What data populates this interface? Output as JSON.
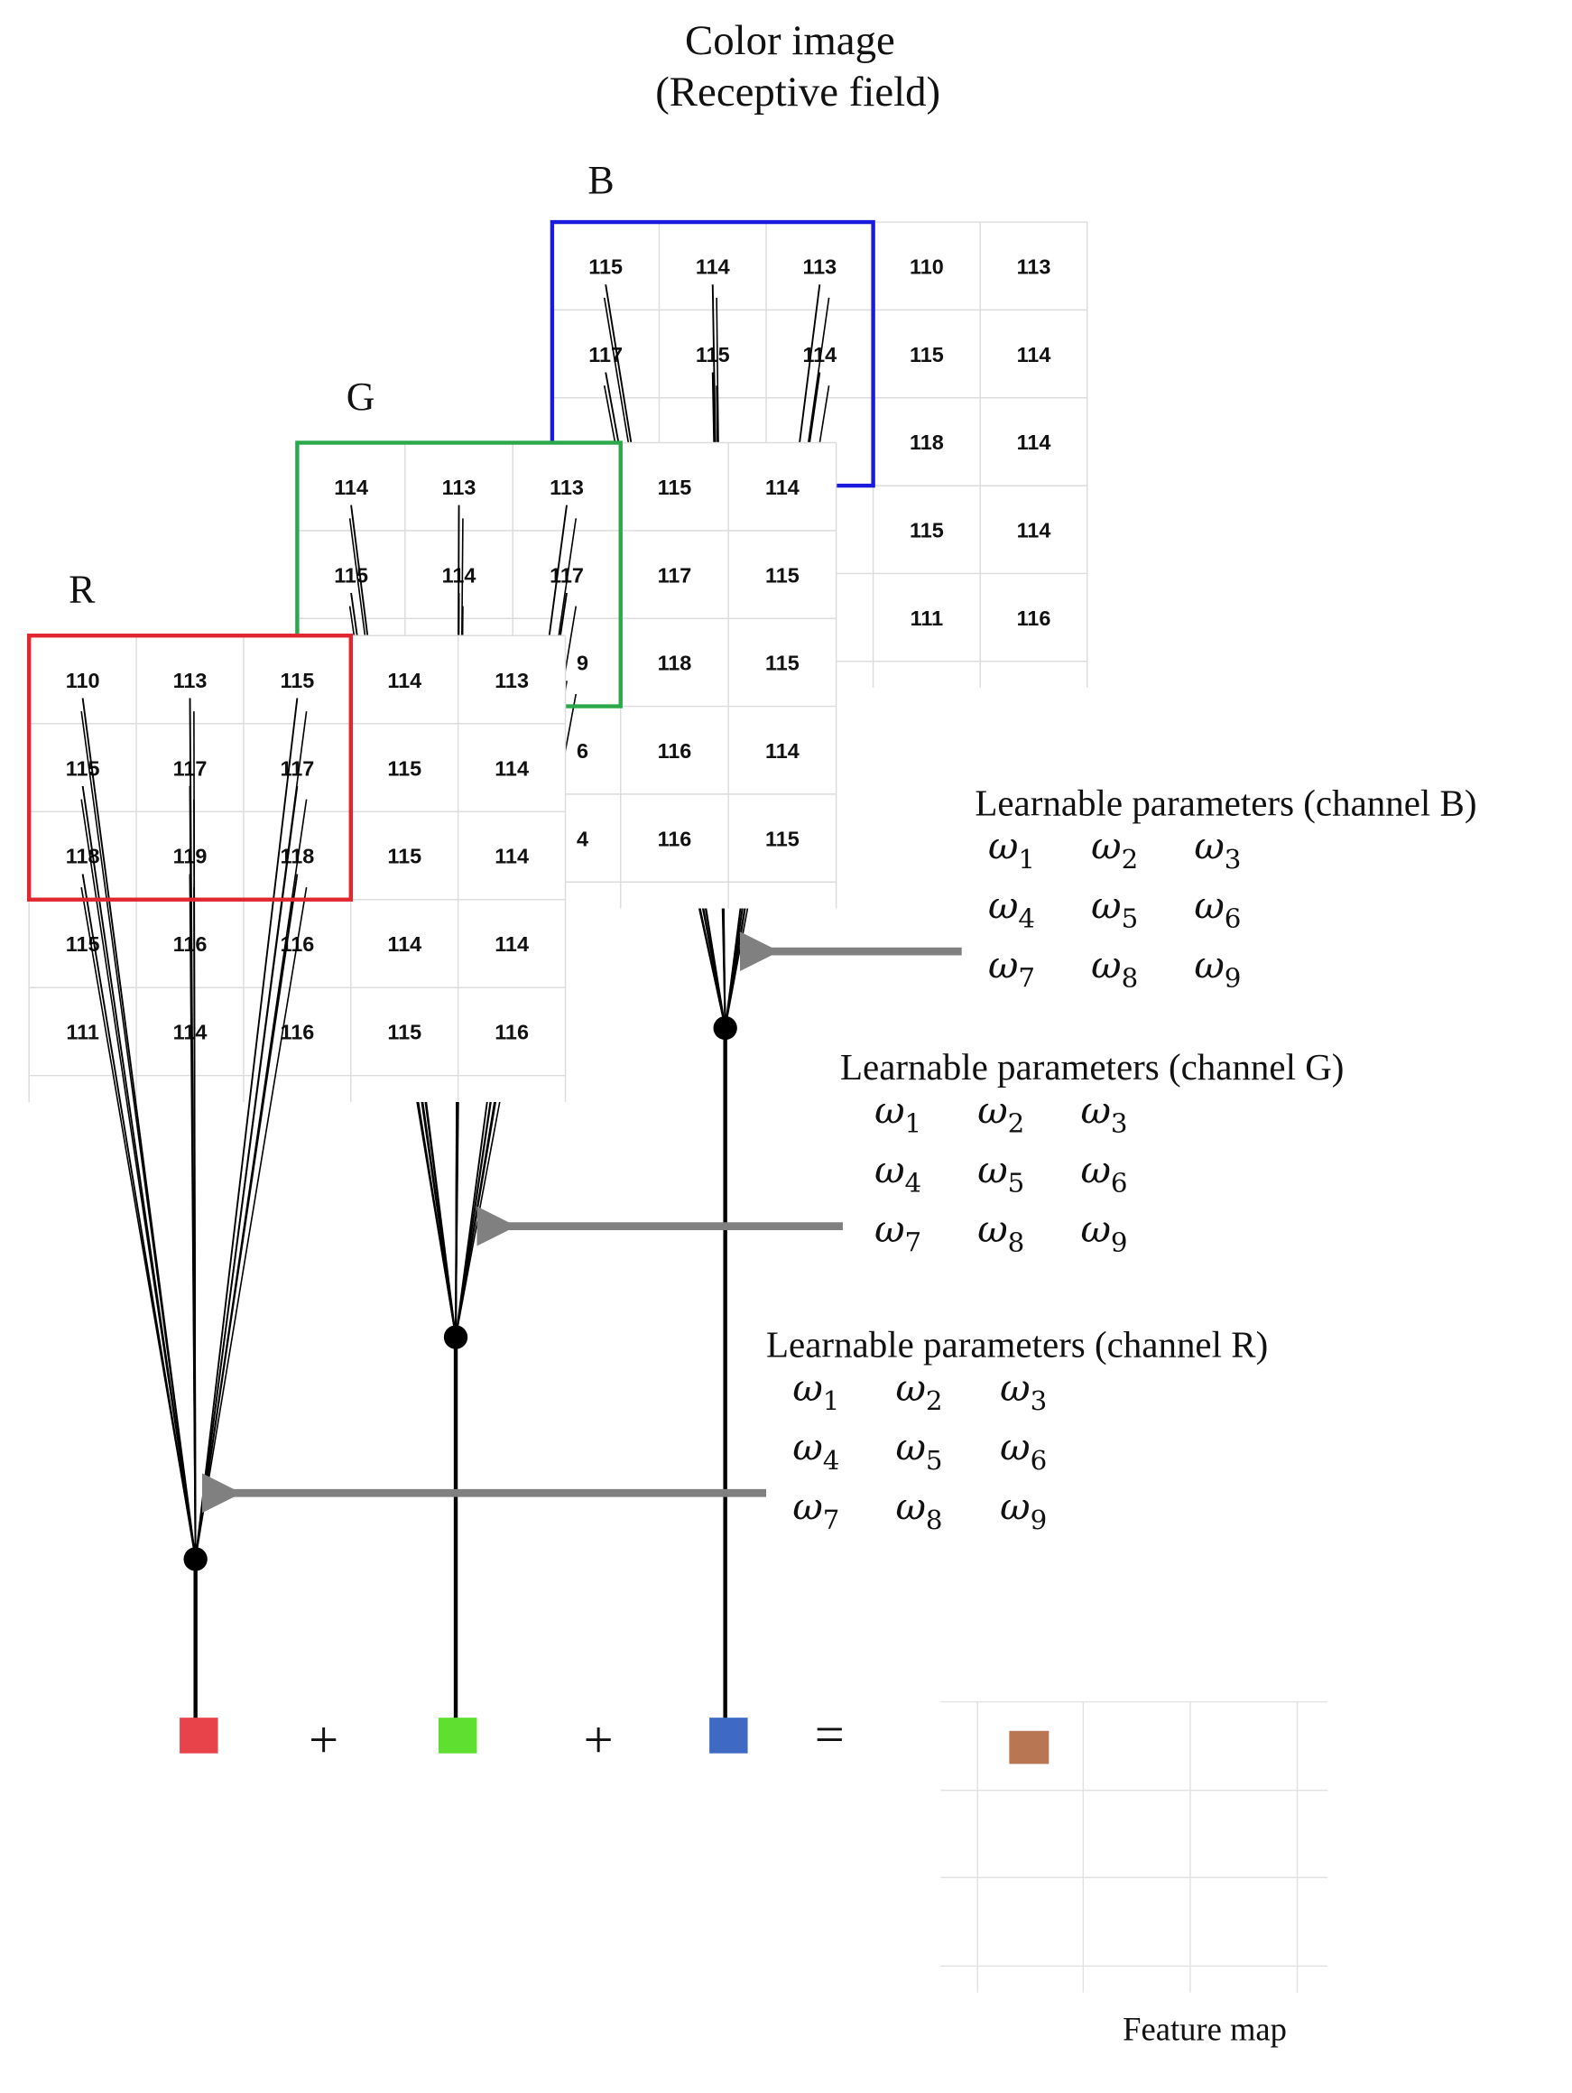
{
  "title_line1": "Color image",
  "title_line2": "(Receptive field)",
  "channels": {
    "B": {
      "label": "B",
      "color": "#1a1adc",
      "cells": [
        [
          "115",
          "114",
          "113",
          "110",
          "113"
        ],
        [
          "117",
          "115",
          "114",
          "115",
          "114"
        ],
        [
          null,
          null,
          null,
          "118",
          "114"
        ],
        [
          null,
          null,
          null,
          "115",
          "114"
        ],
        [
          null,
          null,
          null,
          "111",
          "116"
        ]
      ],
      "params_label": "Learnable parameters (channel  B)",
      "output_color": "#3f6ac4"
    },
    "G": {
      "label": "G",
      "color": "#2aa84a",
      "cells": [
        [
          "114",
          "113",
          "113",
          "115",
          "114"
        ],
        [
          "115",
          "114",
          "117",
          "117",
          "115"
        ],
        [
          null,
          null,
          "9",
          "118",
          "115"
        ],
        [
          null,
          null,
          "6",
          "116",
          "114"
        ],
        [
          null,
          null,
          "4",
          "116",
          "115"
        ]
      ],
      "params_label": "Learnable parameters (channel G)",
      "output_color": "#5fe030"
    },
    "R": {
      "label": "R",
      "color": "#e0262e",
      "cells": [
        [
          "110",
          "113",
          "115",
          "114",
          "113"
        ],
        [
          "115",
          "117",
          "117",
          "115",
          "114"
        ],
        [
          "118",
          "119",
          "118",
          "115",
          "114"
        ],
        [
          "115",
          "116",
          "116",
          "114",
          "114"
        ],
        [
          "111",
          "114",
          "116",
          "115",
          "116"
        ]
      ],
      "params_label": "Learnable parameters (channel  R)",
      "output_color": "#e8434a"
    }
  },
  "weights": {
    "symbol": "ω",
    "subscripts": [
      [
        "1",
        "2",
        "3"
      ],
      [
        "4",
        "5",
        "6"
      ],
      [
        "7",
        "8",
        "9"
      ]
    ]
  },
  "operators": {
    "plus": "+",
    "equals": "="
  },
  "feature_map": {
    "label": "Feature map",
    "value_color": "#b87653"
  },
  "arrow_color": "#808080"
}
